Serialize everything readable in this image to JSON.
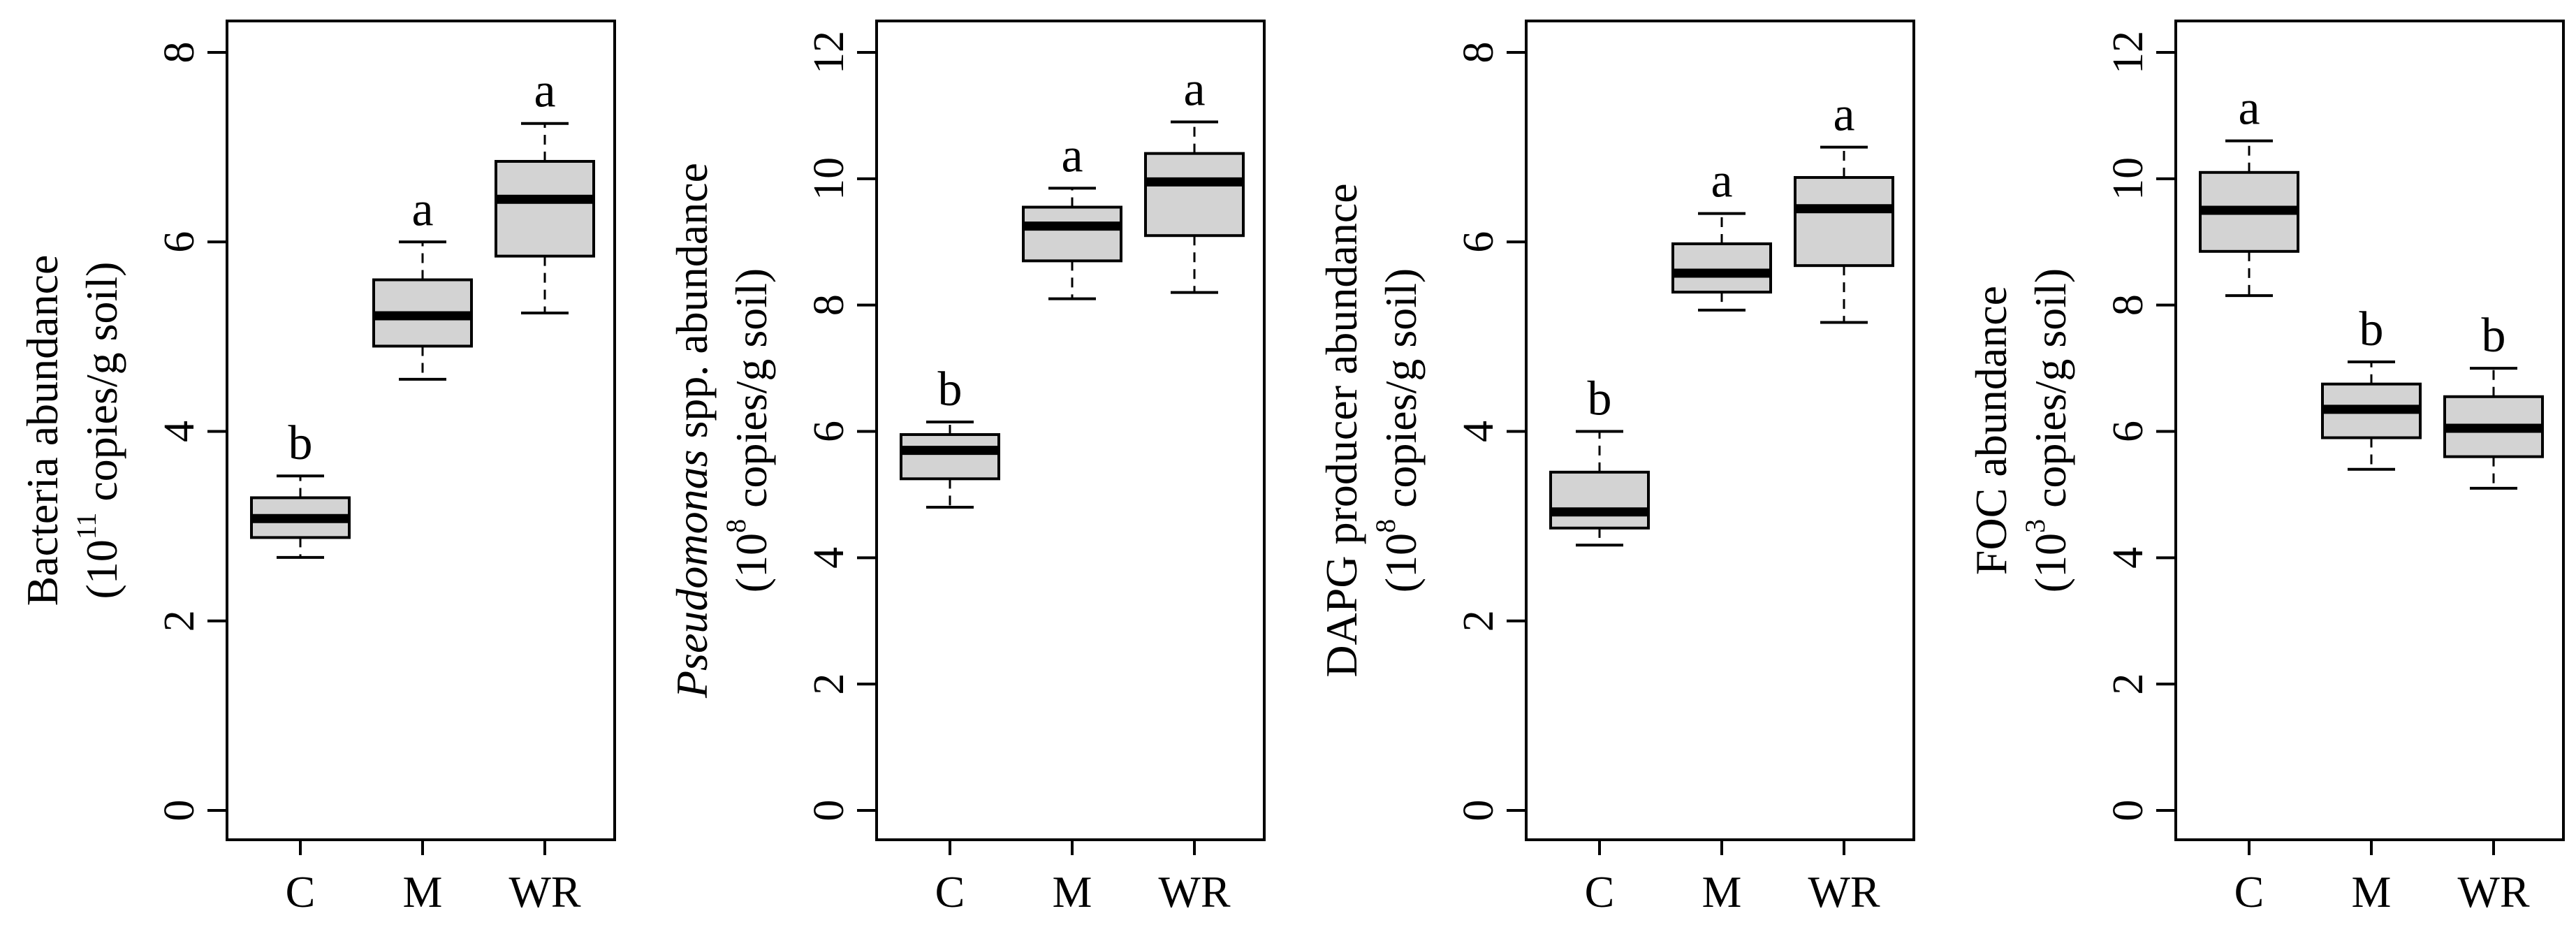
{
  "chart_data": [
    {
      "type": "box",
      "ylabel_line1": [
        "Bacteria abundance"
      ],
      "ylabel_line2": [
        "(10",
        "11",
        " copies/g soil)"
      ],
      "ylim": [
        0,
        8
      ],
      "yticks": [
        "0",
        "2",
        "4",
        "6",
        "8"
      ],
      "categories": [
        "C",
        "M",
        "WR"
      ],
      "boxes": [
        {
          "category": "C",
          "min": 2.67,
          "q1": 2.88,
          "median": 3.08,
          "q3": 3.3,
          "max": 3.53,
          "letter": "b"
        },
        {
          "category": "M",
          "min": 4.55,
          "q1": 4.9,
          "median": 5.22,
          "q3": 5.6,
          "max": 6.0,
          "letter": "a"
        },
        {
          "category": "WR",
          "min": 5.25,
          "q1": 5.85,
          "median": 6.45,
          "q3": 6.85,
          "max": 7.25,
          "letter": "a"
        }
      ],
      "colors": {
        "box_fill": "#d3d3d3"
      }
    },
    {
      "type": "box",
      "ylabel_line1": [
        "Pseudomonas",
        " spp. abundance"
      ],
      "ylabel_line2": [
        "(10",
        "8",
        " copies/g soil)"
      ],
      "ylim": [
        0,
        12
      ],
      "yticks": [
        "0",
        "2",
        "4",
        "6",
        "8",
        "10",
        "12"
      ],
      "categories": [
        "C",
        "M",
        "WR"
      ],
      "boxes": [
        {
          "category": "C",
          "min": 4.8,
          "q1": 5.25,
          "median": 5.7,
          "q3": 5.95,
          "max": 6.15,
          "letter": "b"
        },
        {
          "category": "M",
          "min": 8.1,
          "q1": 8.7,
          "median": 9.25,
          "q3": 9.55,
          "max": 9.85,
          "letter": "a"
        },
        {
          "category": "WR",
          "min": 8.2,
          "q1": 9.1,
          "median": 9.95,
          "q3": 10.4,
          "max": 10.9,
          "letter": "a"
        }
      ],
      "colors": {
        "box_fill": "#d3d3d3"
      }
    },
    {
      "type": "box",
      "ylabel_line1": [
        "DAPG producer abundance"
      ],
      "ylabel_line2": [
        "(10",
        "8",
        " copies/g soil)"
      ],
      "ylim": [
        0,
        8
      ],
      "yticks": [
        "0",
        "2",
        "4",
        "6",
        "8"
      ],
      "categories": [
        "C",
        "M",
        "WR"
      ],
      "boxes": [
        {
          "category": "C",
          "min": 2.8,
          "q1": 2.98,
          "median": 3.15,
          "q3": 3.57,
          "max": 4.0,
          "letter": "b"
        },
        {
          "category": "M",
          "min": 5.28,
          "q1": 5.47,
          "median": 5.67,
          "q3": 5.98,
          "max": 6.3,
          "letter": "a"
        },
        {
          "category": "WR",
          "min": 5.15,
          "q1": 5.75,
          "median": 6.35,
          "q3": 6.68,
          "max": 7.0,
          "letter": "a"
        }
      ],
      "colors": {
        "box_fill": "#d3d3d3"
      }
    },
    {
      "type": "box",
      "ylabel_line1": [
        "FOC abundance"
      ],
      "ylabel_line2": [
        "(10",
        "3",
        " copies/g soil)"
      ],
      "ylim": [
        0,
        12
      ],
      "yticks": [
        "0",
        "2",
        "4",
        "6",
        "8",
        "10",
        "12"
      ],
      "categories": [
        "C",
        "M",
        "WR"
      ],
      "boxes": [
        {
          "category": "C",
          "min": 8.15,
          "q1": 8.85,
          "median": 9.5,
          "q3": 10.1,
          "max": 10.6,
          "letter": "a"
        },
        {
          "category": "M",
          "min": 5.4,
          "q1": 5.9,
          "median": 6.35,
          "q3": 6.75,
          "max": 7.1,
          "letter": "b"
        },
        {
          "category": "WR",
          "min": 5.1,
          "q1": 5.6,
          "median": 6.05,
          "q3": 6.55,
          "max": 7.0,
          "letter": "b"
        }
      ],
      "colors": {
        "box_fill": "#d3d3d3"
      }
    }
  ]
}
